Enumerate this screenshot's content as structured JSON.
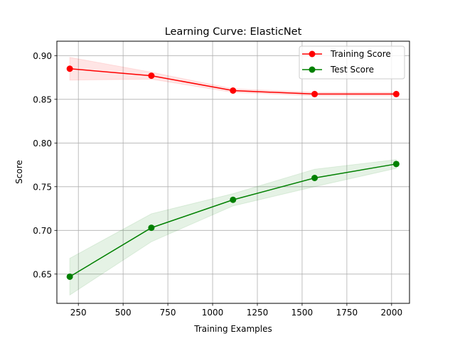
{
  "chart_data": {
    "type": "line",
    "title": "Learning Curve: ElasticNet",
    "xlabel": "Training Examples",
    "ylabel": "Score",
    "xlim": [
      130,
      2100
    ],
    "ylim": [
      0.6165,
      0.9165
    ],
    "xticks": [
      250,
      500,
      750,
      1000,
      1250,
      1500,
      1750,
      2000
    ],
    "xtick_labels": [
      "250",
      "500",
      "750",
      "1000",
      "1250",
      "1500",
      "1750",
      "2000"
    ],
    "yticks": [
      0.65,
      0.7,
      0.75,
      0.8,
      0.85,
      0.9
    ],
    "ytick_labels": [
      "0.65",
      "0.70",
      "0.75",
      "0.80",
      "0.85",
      "0.90"
    ],
    "grid": true,
    "legend_position": "top-right",
    "x": [
      202,
      658,
      1114,
      1570,
      2026
    ],
    "series": [
      {
        "name": "Training Score",
        "color": "#ff0000",
        "values": [
          0.885,
          0.877,
          0.86,
          0.856,
          0.856
        ],
        "lower": [
          0.872,
          0.873,
          0.858,
          0.854,
          0.854
        ],
        "upper": [
          0.898,
          0.881,
          0.862,
          0.858,
          0.858
        ]
      },
      {
        "name": "Test Score",
        "color": "#008000",
        "values": [
          0.647,
          0.703,
          0.735,
          0.76,
          0.776
        ],
        "lower": [
          0.626,
          0.687,
          0.728,
          0.75,
          0.771
        ],
        "upper": [
          0.668,
          0.719,
          0.742,
          0.77,
          0.781
        ]
      }
    ]
  }
}
